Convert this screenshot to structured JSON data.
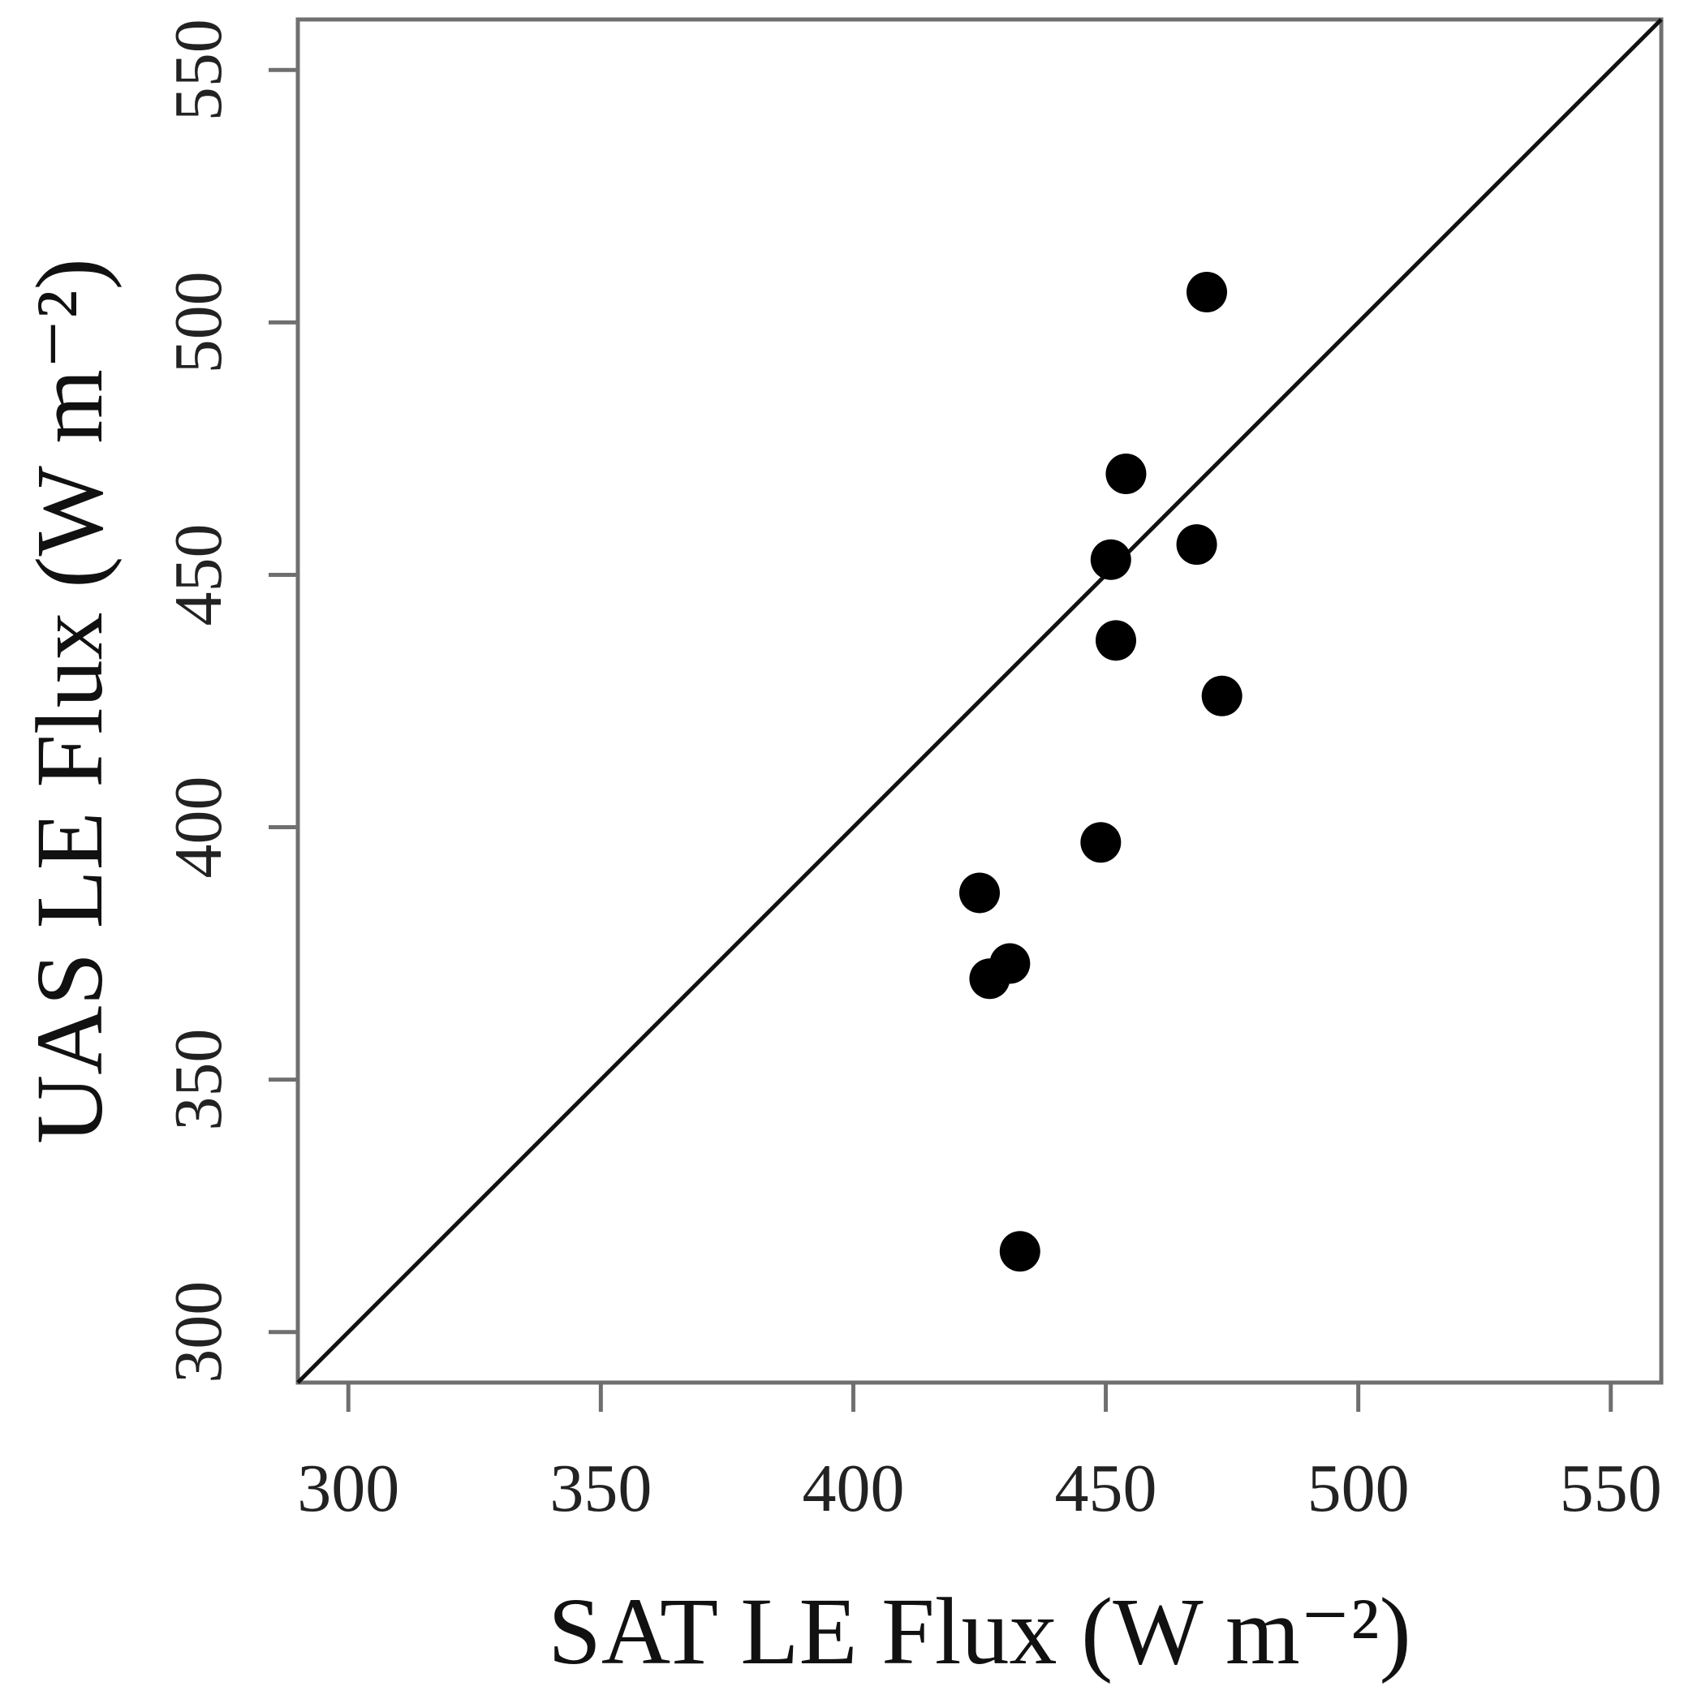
{
  "chart_data": {
    "type": "scatter",
    "xlabel": "SAT LE Flux (W m⁻²)",
    "ylabel": "UAS LE Flux (W m⁻²)",
    "xlim": [
      290,
      560
    ],
    "ylim": [
      290,
      560
    ],
    "x_ticks": [
      300,
      350,
      400,
      450,
      500,
      550
    ],
    "y_ticks": [
      300,
      350,
      400,
      450,
      500,
      550
    ],
    "reference_line": "1:1",
    "grid": false,
    "point_color": "#000000",
    "points": [
      {
        "x": 470,
        "y": 506
      },
      {
        "x": 454,
        "y": 470
      },
      {
        "x": 451,
        "y": 453
      },
      {
        "x": 468,
        "y": 456
      },
      {
        "x": 452,
        "y": 437
      },
      {
        "x": 473,
        "y": 426
      },
      {
        "x": 449,
        "y": 397
      },
      {
        "x": 425,
        "y": 387
      },
      {
        "x": 427,
        "y": 370
      },
      {
        "x": 431,
        "y": 373
      },
      {
        "x": 433,
        "y": 316
      }
    ]
  }
}
